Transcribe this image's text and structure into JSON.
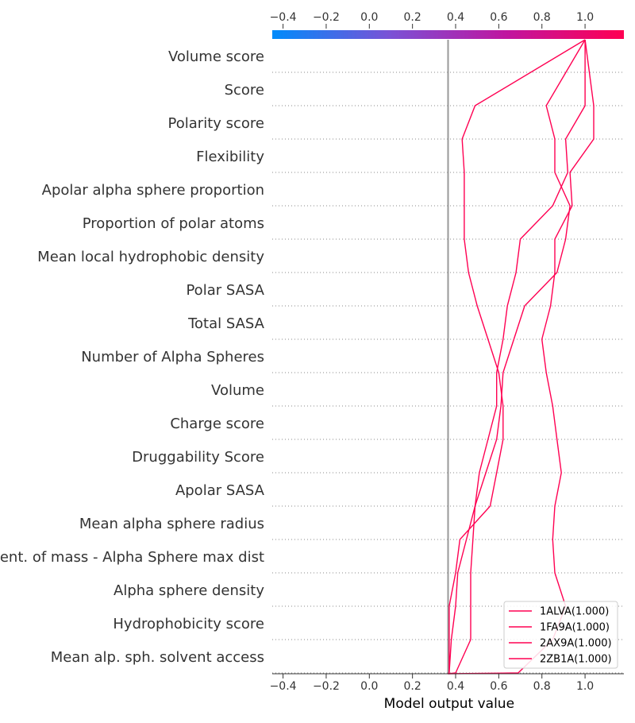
{
  "chart_data": {
    "type": "line",
    "subtype": "shap-decision-plot",
    "xlabel": "Model output value",
    "xlim": [
      -0.45,
      1.18
    ],
    "xticks": [
      -0.4,
      -0.2,
      0.0,
      0.2,
      0.4,
      0.6,
      0.8,
      1.0
    ],
    "xtick_labels": [
      "−0.4",
      "−0.2",
      "0.0",
      "0.2",
      "0.4",
      "0.6",
      "0.8",
      "1.0"
    ],
    "base_value": 0.365,
    "colormap": [
      "#008bfb",
      "#7a52d6",
      "#c0159f",
      "#ff0052"
    ],
    "features": [
      "Volume score",
      "Score",
      "Polarity score",
      "Flexibility",
      "Apolar alpha sphere proportion",
      "Proportion of polar atoms",
      "Mean local hydrophobic density",
      "Polar SASA",
      "Total SASA",
      "Number of Alpha Spheres",
      "Volume",
      "Charge score",
      "Druggability Score",
      "Apolar SASA",
      "Mean alpha sphere radius",
      "Cent. of mass - Alpha Sphere max dist",
      "Alpha sphere density",
      "Hydrophobicity score",
      "Mean alp. sph. solvent access"
    ],
    "line_color": "#ff0052",
    "series": [
      {
        "name": "1ALVA(1.000)",
        "values": [
          0.365,
          0.4,
          0.47,
          0.47,
          0.47,
          0.48,
          0.49,
          0.51,
          0.55,
          0.59,
          0.59,
          0.62,
          0.64,
          0.68,
          0.7,
          0.85,
          0.92,
          0.91,
          1.0,
          1.0
        ]
      },
      {
        "name": "1FA9A(1.000)",
        "values": [
          0.365,
          0.37,
          0.38,
          0.4,
          0.41,
          0.45,
          0.49,
          0.54,
          0.59,
          0.61,
          0.62,
          0.67,
          0.72,
          0.87,
          0.91,
          0.93,
          0.86,
          0.86,
          0.82,
          1.0
        ]
      },
      {
        "name": "2AX9A(1.000)",
        "values": [
          0.365,
          0.37,
          0.37,
          0.37,
          0.4,
          0.42,
          0.56,
          0.59,
          0.62,
          0.62,
          0.6,
          0.55,
          0.5,
          0.46,
          0.44,
          0.44,
          0.44,
          0.43,
          0.49,
          1.0
        ]
      },
      {
        "name": "2ZB1A(1.000)",
        "values": [
          0.365,
          0.69,
          0.85,
          0.91,
          0.86,
          0.85,
          0.86,
          0.89,
          0.87,
          0.85,
          0.82,
          0.8,
          0.84,
          0.86,
          0.86,
          0.94,
          0.93,
          1.04,
          1.04,
          1.0
        ]
      }
    ]
  }
}
